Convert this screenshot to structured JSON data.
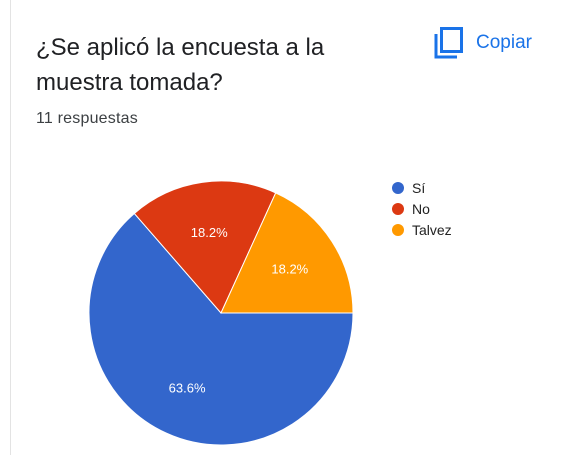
{
  "header": {
    "question": "¿Se aplicó la encuesta a la muestra tomada?",
    "responses": "11 respuestas",
    "copy_label": "Copiar",
    "copy_icon": "copy-icon"
  },
  "colors": {
    "accent": "#1a73e8",
    "si": "#3366cc",
    "no": "#dc3912",
    "talvez": "#ff9900"
  },
  "chart_data": {
    "type": "pie",
    "title": "¿Se aplicó la encuesta a la muestra tomada?",
    "total_responses": 11,
    "slices": [
      {
        "label": "Sí",
        "value": 63.6,
        "display": "63.6%",
        "color": "#3366cc"
      },
      {
        "label": "No",
        "value": 18.2,
        "display": "18.2%",
        "color": "#dc3912"
      },
      {
        "label": "Talvez",
        "value": 18.2,
        "display": "18.2%",
        "color": "#ff9900"
      }
    ],
    "legend_position": "right"
  }
}
